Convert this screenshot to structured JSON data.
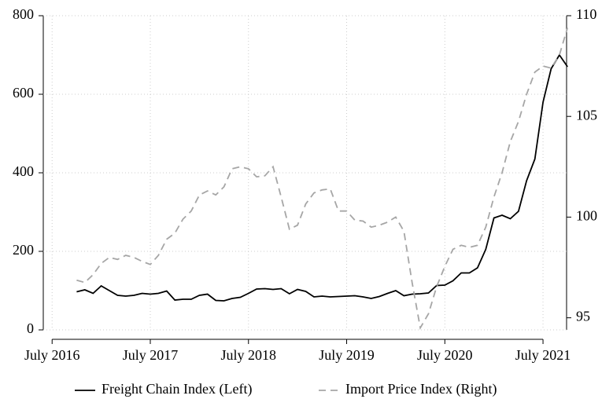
{
  "chart_data": {
    "type": "line",
    "x": [
      2016.75,
      2016.833,
      2016.917,
      2017.0,
      2017.083,
      2017.167,
      2017.25,
      2017.333,
      2017.417,
      2017.5,
      2017.583,
      2017.667,
      2017.75,
      2017.833,
      2017.917,
      2018.0,
      2018.083,
      2018.167,
      2018.25,
      2018.333,
      2018.417,
      2018.5,
      2018.583,
      2018.667,
      2018.75,
      2018.833,
      2018.917,
      2019.0,
      2019.083,
      2019.167,
      2019.25,
      2019.333,
      2019.417,
      2019.5,
      2019.583,
      2019.667,
      2019.75,
      2019.833,
      2019.917,
      2020.0,
      2020.083,
      2020.167,
      2020.25,
      2020.333,
      2020.417,
      2020.5,
      2020.583,
      2020.667,
      2020.75,
      2020.833,
      2020.917,
      2021.0,
      2021.083,
      2021.167,
      2021.25,
      2021.333,
      2021.417,
      2021.5,
      2021.583,
      2021.667,
      2021.75
    ],
    "series": [
      {
        "name": "Freight Chain Index (Left)",
        "color": "#000000",
        "dash": false,
        "values": [
          97,
          102,
          93,
          112,
          100,
          88,
          86,
          88,
          93,
          91,
          93,
          99,
          76,
          78,
          78,
          88,
          91,
          75,
          74,
          80,
          83,
          93,
          104,
          105,
          103,
          105,
          92,
          103,
          98,
          84,
          86,
          84,
          85,
          86,
          87,
          84,
          80,
          85,
          93,
          100,
          87,
          91,
          92,
          94,
          113,
          114,
          125,
          145,
          145,
          158,
          205,
          285,
          292,
          283,
          302,
          380,
          435,
          580,
          665,
          700,
          670
        ]
      },
      {
        "name": "Import Price Index (Right)",
        "color": "#a6a6a6",
        "dash": true,
        "axis": "y2",
        "values": [
          96.87,
          96.75,
          97.14,
          97.7,
          98.0,
          97.9,
          98.1,
          98.0,
          97.8,
          97.65,
          98.1,
          98.9,
          99.2,
          99.9,
          100.3,
          101.1,
          101.3,
          101.1,
          101.5,
          102.4,
          102.5,
          102.4,
          102.0,
          102.05,
          102.5,
          101.0,
          99.4,
          99.6,
          100.65,
          101.2,
          101.35,
          101.4,
          100.3,
          100.3,
          99.85,
          99.8,
          99.5,
          99.6,
          99.75,
          100.0,
          99.3,
          96.75,
          94.5,
          95.2,
          96.55,
          97.55,
          98.4,
          98.6,
          98.5,
          98.6,
          99.5,
          101.0,
          102.2,
          103.75,
          104.75,
          106.1,
          107.2,
          107.5,
          107.4,
          108.05,
          109.4
        ]
      }
    ],
    "xlim": [
      2016.41,
      2021.74
    ],
    "xticks": [
      {
        "value": 2016.5,
        "label": "July 2016"
      },
      {
        "value": 2017.5,
        "label": "July 2017"
      },
      {
        "value": 2018.5,
        "label": "July 2018"
      },
      {
        "value": 2019.5,
        "label": "July 2019"
      },
      {
        "value": 2020.5,
        "label": "July 2020"
      },
      {
        "value": 2021.5,
        "label": "July 2021"
      }
    ],
    "ylim": [
      0,
      800
    ],
    "yticks": [
      0,
      200,
      400,
      600,
      800
    ],
    "y2lim": [
      94.4,
      110
    ],
    "y2ticks": [
      95,
      100,
      105,
      110
    ],
    "grid": true,
    "legend": "bottom"
  }
}
